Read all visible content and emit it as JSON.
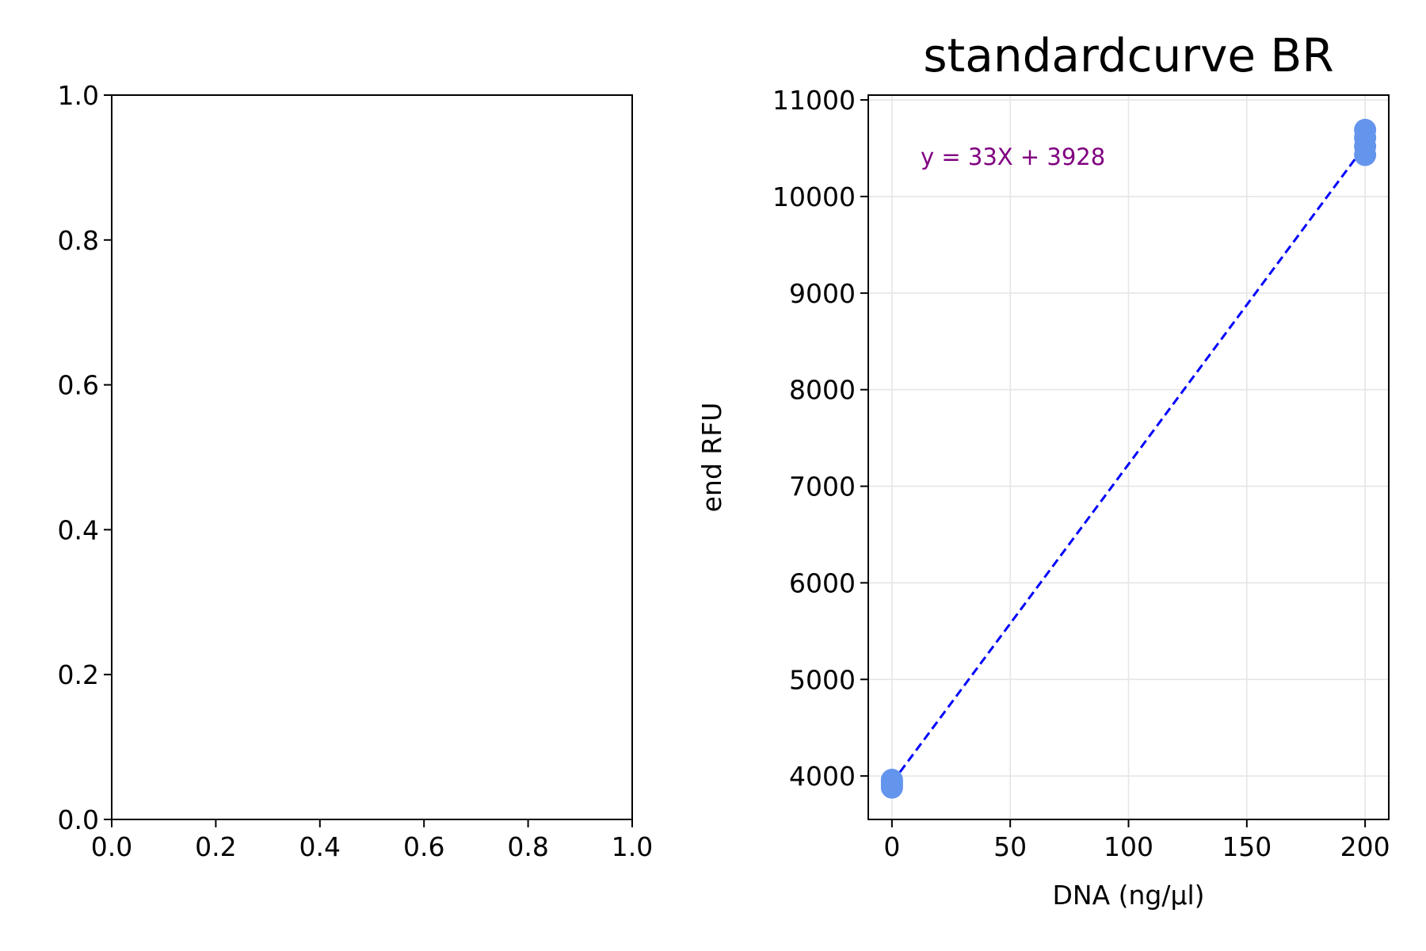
{
  "chart_data": [
    {
      "type": "scatter",
      "title": "",
      "xlabel": "",
      "ylabel": "",
      "xlim": [
        0,
        1
      ],
      "ylim": [
        0,
        1
      ],
      "x_ticks": [
        0.0,
        0.2,
        0.4,
        0.6,
        0.8,
        1.0
      ],
      "x_tick_labels": [
        "0.0",
        "0.2",
        "0.4",
        "0.6",
        "0.8",
        "1.0"
      ],
      "y_ticks": [
        0.0,
        0.2,
        0.4,
        0.6,
        0.8,
        1.0
      ],
      "y_tick_labels": [
        "0.0",
        "0.2",
        "0.4",
        "0.6",
        "0.8",
        "1.0"
      ],
      "grid": false,
      "series": []
    },
    {
      "type": "scatter",
      "title": "standardcurve BR",
      "xlabel": "DNA (ng/µl)",
      "ylabel": "end RFU",
      "xlim": [
        -10,
        210
      ],
      "ylim": [
        3550,
        11050
      ],
      "x_ticks": [
        0,
        50,
        100,
        150,
        200
      ],
      "x_tick_labels": [
        "0",
        "50",
        "100",
        "150",
        "200"
      ],
      "y_ticks": [
        4000,
        5000,
        6000,
        7000,
        8000,
        9000,
        10000,
        11000
      ],
      "y_tick_labels": [
        "4000",
        "5000",
        "6000",
        "7000",
        "8000",
        "9000",
        "10000",
        "11000"
      ],
      "grid": true,
      "series": [
        {
          "x": [
            0,
            0,
            0,
            0,
            200,
            200,
            200,
            200
          ],
          "y": [
            3880,
            3910,
            3940,
            3960,
            10430,
            10520,
            10610,
            10690
          ],
          "color": "#6495ed"
        }
      ],
      "fit_line": {
        "x": [
          0,
          200
        ],
        "y": [
          3928,
          10528
        ],
        "color": "#0000ff",
        "style": "dashed"
      },
      "annotation": {
        "text": "y = 33X + 3928",
        "color": "#800080",
        "position": "top-left"
      }
    }
  ]
}
